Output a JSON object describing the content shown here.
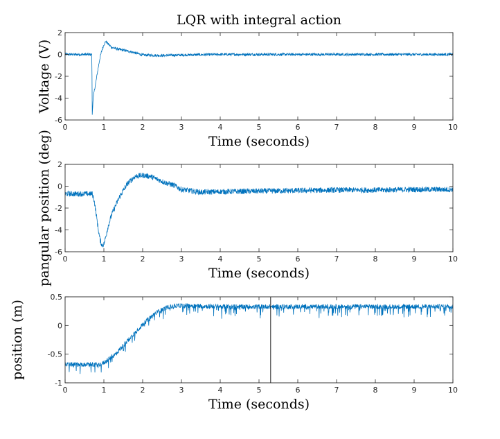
{
  "figure_title": "LQR with integral action",
  "colors": {
    "line": "#0072bd",
    "axis": "#262626"
  },
  "chart_data": [
    {
      "type": "line",
      "title": "LQR with integral action",
      "xlabel": "Time (seconds)",
      "ylabel": "Voltage (V)",
      "xlim": [
        0,
        10
      ],
      "ylim": [
        -6,
        2
      ],
      "xticks": [
        "0",
        "1",
        "2",
        "3",
        "4",
        "5",
        "6",
        "7",
        "8",
        "9",
        "10"
      ],
      "yticks": [
        "2",
        "0",
        "-2",
        "-4",
        "-6"
      ],
      "grid": false,
      "series": [
        {
          "x": [
            0,
            0.69,
            0.7,
            0.72,
            0.75,
            0.8,
            0.85,
            0.9,
            0.95,
            1.0,
            1.05,
            1.1,
            1.2,
            1.4,
            1.7,
            2.0,
            2.5,
            3,
            4,
            5,
            6,
            7,
            8,
            9,
            10
          ],
          "y": [
            0,
            0,
            -5.5,
            -4.2,
            -3.4,
            -2.4,
            -1.3,
            -0.3,
            0.4,
            0.9,
            1.2,
            1.0,
            0.65,
            0.45,
            0.25,
            -0.05,
            -0.1,
            -0.05,
            0,
            0,
            0,
            0,
            0,
            0,
            0
          ],
          "noise": 0.12
        }
      ]
    },
    {
      "type": "line",
      "xlabel": "Time (seconds)",
      "ylabel": "pangular position (deg)",
      "xlim": [
        0,
        10
      ],
      "ylim": [
        -6,
        2
      ],
      "xticks": [
        "0",
        "1",
        "2",
        "3",
        "4",
        "5",
        "6",
        "7",
        "8",
        "9",
        "10"
      ],
      "yticks": [
        "2",
        "0",
        "-2",
        "-4",
        "-6"
      ],
      "grid": false,
      "series": [
        {
          "x": [
            0,
            0.7,
            0.75,
            0.8,
            0.85,
            0.9,
            0.95,
            1.0,
            1.05,
            1.1,
            1.2,
            1.4,
            1.6,
            1.8,
            2.0,
            2.2,
            2.4,
            2.6,
            2.8,
            3.0,
            3.5,
            4,
            5,
            6,
            7,
            8,
            9,
            10
          ],
          "y": [
            -0.7,
            -0.7,
            -1.3,
            -2.5,
            -3.8,
            -4.9,
            -5.4,
            -5.3,
            -4.6,
            -3.8,
            -2.6,
            -1.0,
            0.2,
            0.9,
            1.0,
            0.9,
            0.6,
            0.3,
            0.1,
            -0.3,
            -0.55,
            -0.5,
            -0.45,
            -0.4,
            -0.35,
            -0.35,
            -0.3,
            -0.3
          ],
          "noise": 0.25
        }
      ]
    },
    {
      "type": "line",
      "xlabel": "Time (seconds)",
      "ylabel": "position (m)",
      "xlim": [
        0,
        10
      ],
      "ylim": [
        -1,
        0.5
      ],
      "xticks": [
        "0",
        "1",
        "2",
        "3",
        "4",
        "5",
        "6",
        "7",
        "8",
        "9",
        "10"
      ],
      "yticks": [
        "0.5",
        "0",
        "-0.5",
        "-1"
      ],
      "grid": false,
      "series": [
        {
          "x": [
            0,
            0.5,
            0.9,
            1.0,
            1.1,
            1.3,
            1.5,
            1.7,
            1.9,
            2.1,
            2.3,
            2.5,
            2.7,
            3.0,
            3.5,
            4,
            5,
            6,
            7,
            8,
            9,
            10
          ],
          "y": [
            -0.68,
            -0.68,
            -0.68,
            -0.65,
            -0.6,
            -0.5,
            -0.35,
            -0.2,
            -0.05,
            0.08,
            0.2,
            0.28,
            0.33,
            0.35,
            0.34,
            0.33,
            0.33,
            0.33,
            0.33,
            0.33,
            0.33,
            0.33
          ],
          "noise": 0.04,
          "dips": 0.18
        }
      ],
      "annotations": [
        {
          "type": "vline",
          "x": 5.3
        }
      ]
    }
  ]
}
